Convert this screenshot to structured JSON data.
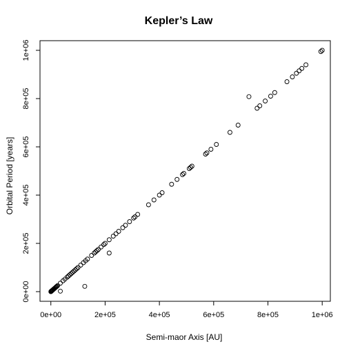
{
  "chart_data": {
    "type": "scatter",
    "title": "Kepler’s Law",
    "xlabel": "Semi-maor Axis [AU]",
    "ylabel": "Orbital Period [years]",
    "xlim": [
      -40000,
      1030000
    ],
    "ylim": [
      -40000,
      1040000
    ],
    "x_ticks": [
      0,
      200000,
      400000,
      600000,
      800000,
      1000000
    ],
    "x_tick_labels": [
      "0e+00",
      "2e+05",
      "4e+05",
      "6e+05",
      "8e+05",
      "1e+06"
    ],
    "y_ticks": [
      0,
      200000,
      400000,
      600000,
      800000,
      1000000
    ],
    "y_tick_labels": [
      "0e+00",
      "2e+05",
      "4e+05",
      "6e+05",
      "8e+05",
      "1e+06"
    ],
    "grid": false,
    "legend": "none",
    "marker": "open-circle",
    "points": [
      [
        0,
        0
      ],
      [
        800,
        800
      ],
      [
        1500,
        1500
      ],
      [
        2200,
        2200
      ],
      [
        3000,
        3000
      ],
      [
        4000,
        4000
      ],
      [
        5000,
        5000
      ],
      [
        6000,
        6000
      ],
      [
        7500,
        7500
      ],
      [
        9000,
        9000
      ],
      [
        10500,
        10500
      ],
      [
        12000,
        12000
      ],
      [
        14000,
        14000
      ],
      [
        16000,
        16000
      ],
      [
        18000,
        18000
      ],
      [
        20000,
        20000
      ],
      [
        22000,
        22000
      ],
      [
        25000,
        25000
      ],
      [
        35000,
        35000
      ],
      [
        45000,
        45000
      ],
      [
        52000,
        52000
      ],
      [
        60000,
        60000
      ],
      [
        65000,
        65000
      ],
      [
        70000,
        70000
      ],
      [
        75000,
        75000
      ],
      [
        80000,
        80000
      ],
      [
        85000,
        85000
      ],
      [
        90000,
        90000
      ],
      [
        95000,
        95000
      ],
      [
        100000,
        100000
      ],
      [
        110000,
        110000
      ],
      [
        120000,
        120000
      ],
      [
        128000,
        128000
      ],
      [
        135000,
        135000
      ],
      [
        150000,
        150000
      ],
      [
        160000,
        160000
      ],
      [
        165000,
        165000
      ],
      [
        170000,
        170000
      ],
      [
        175000,
        175000
      ],
      [
        185000,
        185000
      ],
      [
        195000,
        195000
      ],
      [
        200000,
        200000
      ],
      [
        215000,
        215000
      ],
      [
        230000,
        230000
      ],
      [
        240000,
        240000
      ],
      [
        250000,
        250000
      ],
      [
        265000,
        265000
      ],
      [
        275000,
        275000
      ],
      [
        290000,
        290000
      ],
      [
        305000,
        305000
      ],
      [
        310000,
        310000
      ],
      [
        320000,
        320000
      ],
      [
        360000,
        360000
      ],
      [
        380000,
        380000
      ],
      [
        400000,
        400000
      ],
      [
        410000,
        410000
      ],
      [
        445000,
        445000
      ],
      [
        465000,
        465000
      ],
      [
        485000,
        485000
      ],
      [
        490000,
        490000
      ],
      [
        510000,
        510000
      ],
      [
        515000,
        515000
      ],
      [
        520000,
        520000
      ],
      [
        570000,
        570000
      ],
      [
        575000,
        575000
      ],
      [
        590000,
        590000
      ],
      [
        610000,
        610000
      ],
      [
        660000,
        660000
      ],
      [
        690000,
        690000
      ],
      [
        760000,
        760000
      ],
      [
        770000,
        770000
      ],
      [
        790000,
        790000
      ],
      [
        810000,
        810000
      ],
      [
        825000,
        825000
      ],
      [
        870000,
        870000
      ],
      [
        890000,
        890000
      ],
      [
        905000,
        905000
      ],
      [
        915000,
        915000
      ],
      [
        925000,
        925000
      ],
      [
        940000,
        940000
      ],
      [
        995000,
        995000
      ],
      [
        1000000,
        1000000
      ],
      [
        730000,
        808000
      ],
      [
        215000,
        160000
      ],
      [
        125000,
        22000
      ],
      [
        35000,
        2000
      ]
    ]
  }
}
